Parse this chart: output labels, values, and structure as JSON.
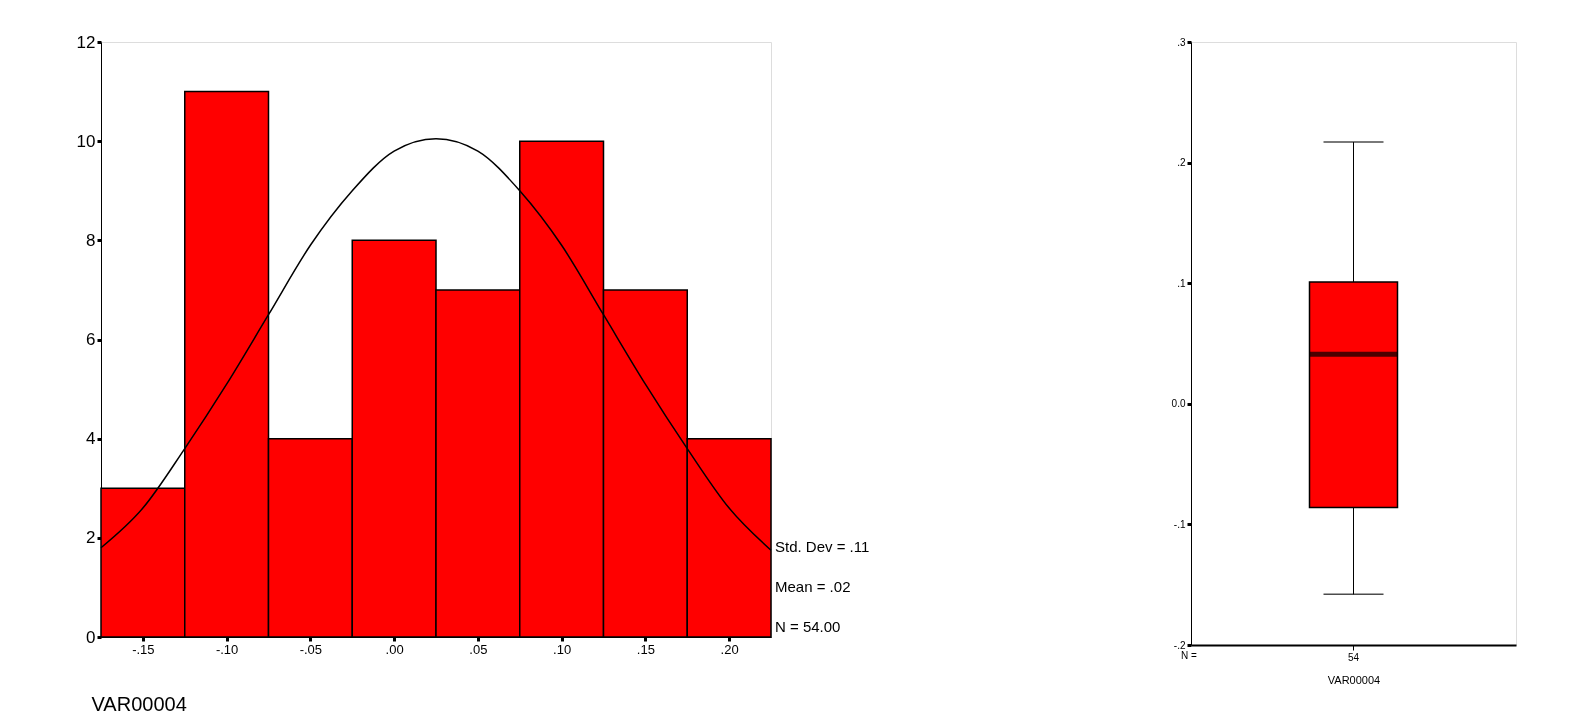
{
  "chart_data": [
    {
      "type": "histogram",
      "xlabel": "VAR00004",
      "bins": [
        -0.175,
        -0.125,
        -0.075,
        -0.025,
        0.025,
        0.075,
        0.125,
        0.175,
        0.225
      ],
      "values": [
        3,
        11,
        4,
        8,
        7,
        10,
        7,
        4
      ],
      "color": "#ff0000",
      "series": [
        {
          "type": "line",
          "color": "#000000",
          "x": [
            -0.175,
            -0.15,
            -0.125,
            -0.1,
            -0.075,
            -0.05,
            -0.025,
            0,
            0.025,
            0.05,
            0.075,
            0.1,
            0.125,
            0.15,
            0.175,
            0.2,
            0.225
          ],
          "values": [
            1.8,
            2.6,
            3.8,
            5.1,
            6.5,
            7.9,
            9.0,
            9.8,
            10.05,
            9.8,
            9.0,
            7.9,
            6.5,
            5.1,
            3.8,
            2.6,
            1.75
          ]
        }
      ],
      "xlim": [
        -0.175,
        0.225
      ],
      "xticks": [
        {
          "value": -0.15,
          "label": "-.15"
        },
        {
          "value": -0.1,
          "label": "-.10"
        },
        {
          "value": -0.05,
          "label": "-.05"
        },
        {
          "value": 0,
          "label": ".00"
        },
        {
          "value": 0.05,
          "label": ".05"
        },
        {
          "value": 0.1,
          "label": ".10"
        },
        {
          "value": 0.15,
          "label": ".15"
        },
        {
          "value": 0.2,
          "label": ".20"
        }
      ],
      "ylim": [
        0,
        12
      ],
      "yticks": [
        0,
        2,
        4,
        6,
        8,
        10,
        12
      ],
      "grid": false,
      "annotations": [
        "Std. Dev = .11",
        "Mean = .02",
        "N = 54.00"
      ]
    },
    {
      "type": "box",
      "categories": [
        "54"
      ],
      "xlabel": "VAR00004",
      "color": "#ff0000",
      "boxes": [
        {
          "low": -0.158,
          "q1": -0.086,
          "median": 0.041,
          "q3": 0.101,
          "high": 0.217
        }
      ],
      "ylim": [
        -0.2,
        0.3
      ],
      "yticks": [
        {
          "value": -0.2,
          "label": "-.2"
        },
        {
          "value": -0.1,
          "label": "-.1"
        },
        {
          "value": 0,
          "label": "0.0"
        },
        {
          "value": 0.1,
          "label": ".1"
        },
        {
          "value": 0.2,
          "label": ".2"
        },
        {
          "value": 0.3,
          "label": ".3"
        }
      ],
      "grid": false,
      "annotations": [
        "N ="
      ]
    }
  ]
}
